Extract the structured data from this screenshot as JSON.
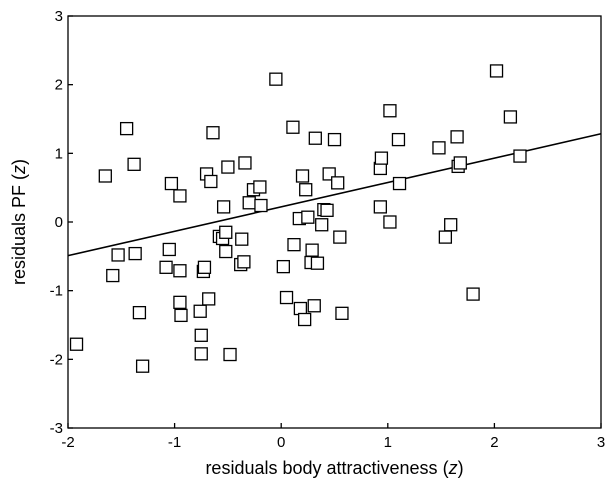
{
  "chart_data": {
    "type": "scatter",
    "title": "",
    "xlabel": "residuals body attractiveness",
    "xlabel_var": "z",
    "ylabel": "residuals PF",
    "ylabel_var": "z",
    "xlim": [
      -2,
      3
    ],
    "ylim": [
      -3,
      3
    ],
    "x_ticks": [
      -2,
      -1,
      0,
      1,
      2,
      3
    ],
    "y_ticks": [
      -3,
      -2,
      -1,
      0,
      1,
      2,
      3
    ],
    "grid": false,
    "legend": "none",
    "marker": "open-square",
    "fit_line": {
      "intercept": 0.22,
      "slope": 0.355
    },
    "points": [
      {
        "x": -1.92,
        "y": -1.78
      },
      {
        "x": -1.65,
        "y": 0.67
      },
      {
        "x": -1.58,
        "y": -0.78
      },
      {
        "x": -1.53,
        "y": -0.48
      },
      {
        "x": -1.45,
        "y": 1.36
      },
      {
        "x": -1.38,
        "y": 0.84
      },
      {
        "x": -1.37,
        "y": -0.46
      },
      {
        "x": -1.33,
        "y": -1.32
      },
      {
        "x": -1.3,
        "y": -2.1
      },
      {
        "x": -1.08,
        "y": -0.66
      },
      {
        "x": -1.05,
        "y": -0.4
      },
      {
        "x": -1.03,
        "y": 0.56
      },
      {
        "x": -0.95,
        "y": 0.38
      },
      {
        "x": -0.95,
        "y": -0.71
      },
      {
        "x": -0.95,
        "y": -1.17
      },
      {
        "x": -0.94,
        "y": -1.36
      },
      {
        "x": -0.76,
        "y": -1.3
      },
      {
        "x": -0.75,
        "y": -1.65
      },
      {
        "x": -0.75,
        "y": -1.92
      },
      {
        "x": -0.73,
        "y": -0.72
      },
      {
        "x": -0.72,
        "y": -0.66
      },
      {
        "x": -0.7,
        "y": 0.7
      },
      {
        "x": -0.68,
        "y": -1.12
      },
      {
        "x": -0.66,
        "y": 0.59
      },
      {
        "x": -0.64,
        "y": 1.3
      },
      {
        "x": -0.58,
        "y": -0.21
      },
      {
        "x": -0.55,
        "y": -0.24
      },
      {
        "x": -0.54,
        "y": 0.22
      },
      {
        "x": -0.52,
        "y": -0.15
      },
      {
        "x": -0.52,
        "y": -0.43
      },
      {
        "x": -0.5,
        "y": 0.8
      },
      {
        "x": -0.48,
        "y": -1.93
      },
      {
        "x": -0.38,
        "y": -0.62
      },
      {
        "x": -0.37,
        "y": -0.25
      },
      {
        "x": -0.35,
        "y": -0.58
      },
      {
        "x": -0.34,
        "y": 0.86
      },
      {
        "x": -0.3,
        "y": 0.28
      },
      {
        "x": -0.26,
        "y": 0.47
      },
      {
        "x": -0.2,
        "y": 0.51
      },
      {
        "x": -0.19,
        "y": 0.24
      },
      {
        "x": -0.05,
        "y": 2.08
      },
      {
        "x": 0.02,
        "y": -0.65
      },
      {
        "x": 0.05,
        "y": -1.1
      },
      {
        "x": 0.11,
        "y": 1.38
      },
      {
        "x": 0.12,
        "y": -0.33
      },
      {
        "x": 0.17,
        "y": 0.05
      },
      {
        "x": 0.18,
        "y": -1.26
      },
      {
        "x": 0.2,
        "y": 0.67
      },
      {
        "x": 0.22,
        "y": -1.42
      },
      {
        "x": 0.23,
        "y": 0.47
      },
      {
        "x": 0.25,
        "y": 0.07
      },
      {
        "x": 0.28,
        "y": -0.59
      },
      {
        "x": 0.29,
        "y": -0.41
      },
      {
        "x": 0.31,
        "y": -1.22
      },
      {
        "x": 0.32,
        "y": 1.22
      },
      {
        "x": 0.34,
        "y": -0.6
      },
      {
        "x": 0.38,
        "y": -0.04
      },
      {
        "x": 0.4,
        "y": 0.18
      },
      {
        "x": 0.43,
        "y": 0.17
      },
      {
        "x": 0.45,
        "y": 0.7
      },
      {
        "x": 0.5,
        "y": 1.2
      },
      {
        "x": 0.53,
        "y": 0.57
      },
      {
        "x": 0.55,
        "y": -0.22
      },
      {
        "x": 0.57,
        "y": -1.33
      },
      {
        "x": 0.93,
        "y": 0.78
      },
      {
        "x": 0.93,
        "y": 0.22
      },
      {
        "x": 0.94,
        "y": 0.93
      },
      {
        "x": 1.02,
        "y": 1.62
      },
      {
        "x": 1.02,
        "y": 0.0
      },
      {
        "x": 1.1,
        "y": 1.2
      },
      {
        "x": 1.11,
        "y": 0.56
      },
      {
        "x": 1.48,
        "y": 1.08
      },
      {
        "x": 1.54,
        "y": -0.22
      },
      {
        "x": 1.59,
        "y": -0.04
      },
      {
        "x": 1.65,
        "y": 1.24
      },
      {
        "x": 1.66,
        "y": 0.81
      },
      {
        "x": 1.68,
        "y": 0.86
      },
      {
        "x": 1.8,
        "y": -1.05
      },
      {
        "x": 2.02,
        "y": 2.2
      },
      {
        "x": 2.15,
        "y": 1.53
      },
      {
        "x": 2.24,
        "y": 0.96
      }
    ]
  }
}
